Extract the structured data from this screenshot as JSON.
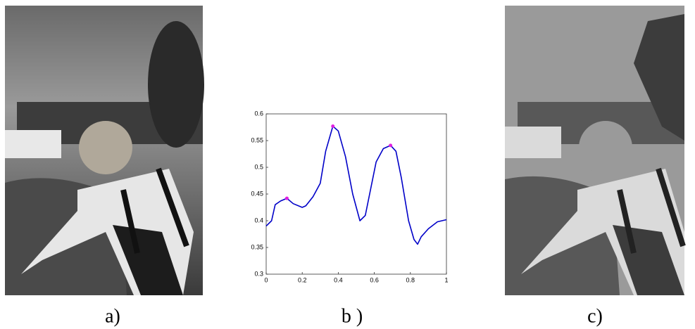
{
  "panels": [
    {
      "label": "a)"
    },
    {
      "label": "b )"
    },
    {
      "label": "c)"
    }
  ],
  "chart_data": {
    "type": "line",
    "x": [
      0,
      0.03,
      0.05,
      0.08,
      0.115,
      0.15,
      0.2,
      0.22,
      0.26,
      0.3,
      0.33,
      0.37,
      0.4,
      0.44,
      0.48,
      0.52,
      0.55,
      0.58,
      0.61,
      0.65,
      0.69,
      0.72,
      0.75,
      0.79,
      0.82,
      0.84,
      0.86,
      0.9,
      0.95,
      1
    ],
    "series": [
      {
        "color": "#0000c8",
        "values": [
          0.39,
          0.4,
          0.43,
          0.437,
          0.442,
          0.432,
          0.425,
          0.428,
          0.445,
          0.47,
          0.53,
          0.577,
          0.568,
          0.52,
          0.45,
          0.4,
          0.41,
          0.46,
          0.51,
          0.535,
          0.541,
          0.53,
          0.48,
          0.4,
          0.365,
          0.356,
          0.37,
          0.385,
          0.398,
          0.402
        ]
      }
    ],
    "peaks": {
      "color": "#e020e0",
      "x": [
        0.115,
        0.37,
        0.69
      ],
      "values": [
        0.442,
        0.577,
        0.541
      ]
    },
    "xlim": [
      0,
      1
    ],
    "xticks": [
      0,
      0.2,
      0.4,
      0.6,
      0.8,
      1
    ],
    "ylim": [
      0.3,
      0.6
    ],
    "yticks": [
      0.3,
      0.35,
      0.4,
      0.45,
      0.5,
      0.55,
      0.6
    ]
  }
}
